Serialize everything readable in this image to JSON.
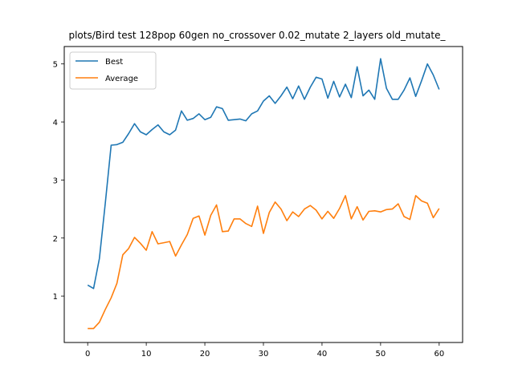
{
  "chart_data": {
    "type": "line",
    "title": "plots/Bird test 128pop 60gen no_crossover 0.02_mutate 2_layers old_mutate_",
    "xlabel": "",
    "ylabel": "",
    "xlim": [
      -4,
      64
    ],
    "ylim": [
      0.2,
      5.3
    ],
    "xticks": [
      0,
      10,
      20,
      30,
      40,
      50,
      60
    ],
    "yticks": [
      1,
      2,
      3,
      4,
      5
    ],
    "grid": false,
    "legend": "upper left",
    "x": [
      0,
      1,
      2,
      3,
      4,
      5,
      6,
      7,
      8,
      9,
      10,
      11,
      12,
      13,
      14,
      15,
      16,
      17,
      18,
      19,
      20,
      21,
      22,
      23,
      24,
      25,
      26,
      27,
      28,
      29,
      30,
      31,
      32,
      33,
      34,
      35,
      36,
      37,
      38,
      39,
      40,
      41,
      42,
      43,
      44,
      45,
      46,
      47,
      48,
      49,
      50,
      51,
      52,
      53,
      54,
      55,
      56,
      57,
      58,
      59,
      60
    ],
    "series": [
      {
        "name": "Best",
        "color": "#1f77b4",
        "values": [
          1.19,
          1.13,
          1.65,
          2.6,
          3.6,
          3.61,
          3.65,
          3.8,
          3.97,
          3.83,
          3.78,
          3.87,
          3.95,
          3.83,
          3.78,
          3.86,
          4.19,
          4.03,
          4.06,
          4.14,
          4.04,
          4.08,
          4.26,
          4.23,
          4.03,
          4.04,
          4.05,
          4.02,
          4.14,
          4.19,
          4.36,
          4.45,
          4.32,
          4.45,
          4.6,
          4.4,
          4.62,
          4.39,
          4.6,
          4.77,
          4.74,
          4.41,
          4.7,
          4.43,
          4.65,
          4.42,
          4.95,
          4.45,
          4.55,
          4.39,
          5.09,
          4.58,
          4.39,
          4.39,
          4.55,
          4.76,
          4.44,
          4.71,
          5.0,
          4.81,
          4.56
        ]
      },
      {
        "name": "Average",
        "color": "#ff7f0e",
        "values": [
          0.44,
          0.44,
          0.55,
          0.77,
          0.97,
          1.22,
          1.71,
          1.82,
          2.01,
          1.91,
          1.79,
          2.11,
          1.9,
          1.92,
          1.94,
          1.69,
          1.88,
          2.06,
          2.34,
          2.38,
          2.05,
          2.39,
          2.57,
          2.11,
          2.12,
          2.33,
          2.33,
          2.25,
          2.2,
          2.55,
          2.08,
          2.44,
          2.62,
          2.5,
          2.3,
          2.45,
          2.37,
          2.5,
          2.56,
          2.48,
          2.33,
          2.46,
          2.34,
          2.51,
          2.73,
          2.33,
          2.54,
          2.31,
          2.46,
          2.47,
          2.45,
          2.49,
          2.5,
          2.59,
          2.37,
          2.32,
          2.73,
          2.64,
          2.6,
          2.35,
          2.51
        ]
      }
    ]
  }
}
